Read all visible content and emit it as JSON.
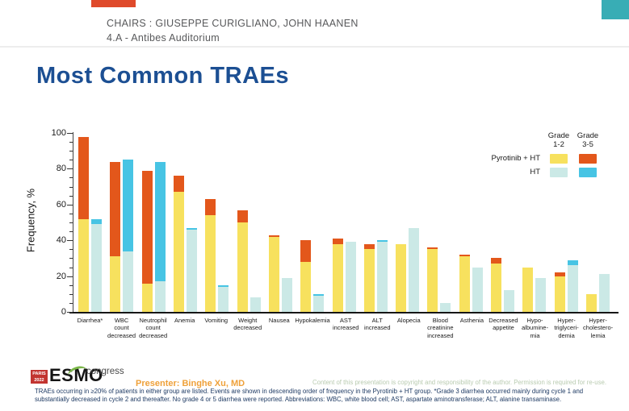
{
  "page": {
    "header": {
      "chairs": "CHAIRS : GIUSEPPE CURIGLIANO, JOHN HAANEN",
      "room": "4.A - Antibes Auditorium"
    },
    "title": "Most Common TRAEs",
    "footer": {
      "logo_paris_line1": "PARIS",
      "logo_paris_line2": "2022",
      "logo_esmo": "ESMO",
      "logo_congress": "congress",
      "presenter": "Presenter: Binghe Xu, MD",
      "copyright": "Content of this presentation is copyright and responsibility of the author. Permission is required for re-use.",
      "footnote": "TRAEs occurring in ≥20% of patients in either group are listed. Events are shown in descending order of frequency in the Pyrotinib + HT group. *Grade 3 diarrhea occurred mainly during cycle 1 and substantially decreased in cycle 2 and thereafter. No grade 4 or 5 diarrhea were reported. Abbreviations: WBC, white blood cell; AST, aspartate aminotransferase; ALT, alanine transaminase."
    },
    "decor": {
      "top_left_color": "#df4a2b",
      "top_right_color": "#38adb5"
    }
  },
  "chart_data": {
    "type": "bar",
    "stacked": true,
    "title": "",
    "xlabel": "",
    "ylabel": "Frequency, %",
    "ylim": [
      0,
      100
    ],
    "ytick_step": 20,
    "yminor_step": 5,
    "grid": false,
    "legend": {
      "position": "top-right",
      "col_headers": [
        [
          "Grade",
          "1-2"
        ],
        [
          "Grade",
          "3-5"
        ]
      ],
      "rows": [
        {
          "label": "Pyrotinib + HT",
          "colors": [
            "#F7E15E",
            "#E3571B"
          ]
        },
        {
          "label": "HT",
          "colors": [
            "#CBE9E6",
            "#47C4E4"
          ]
        }
      ]
    },
    "categories": [
      "Diarrhea*",
      "WBC count decreased",
      "Neutrophil count decreased",
      "Anemia",
      "Vomiting",
      "Weight decreased",
      "Nausea",
      "Hypokalemia",
      "AST increased",
      "ALT increased",
      "Alopecia",
      "Blood creatinine increased",
      "Asthenia",
      "Decreased appetite",
      "Hypo-albumine-mia",
      "Hyper-triglyceri-demia",
      "Hyper-cholestero-lemia"
    ],
    "category_lines": [
      [
        "Diarrhea*"
      ],
      [
        "WBC",
        "count",
        "decreased"
      ],
      [
        "Neutrophil",
        "count",
        "decreased"
      ],
      [
        "Anemia"
      ],
      [
        "Vomiting"
      ],
      [
        "Weight",
        "decreased"
      ],
      [
        "Nausea"
      ],
      [
        "Hypokalemia"
      ],
      [
        "AST",
        "increased"
      ],
      [
        "ALT",
        "increased"
      ],
      [
        "Alopecia"
      ],
      [
        "Blood",
        "creatinine",
        "increased"
      ],
      [
        "Asthenia"
      ],
      [
        "Decreased",
        "appetite"
      ],
      [
        "Hypo-",
        "albumine-",
        "mia"
      ],
      [
        "Hyper-",
        "triglyceri-",
        "demia"
      ],
      [
        "Hyper-",
        "cholestero-",
        "lemia"
      ]
    ],
    "series": [
      {
        "name": "Pyrotinib + HT — Grade 1-2",
        "group": "Pyrotinib + HT",
        "grade": "1-2",
        "color": "#F7E15E",
        "values": [
          52,
          31,
          16,
          67,
          54,
          50,
          42,
          28,
          38,
          35,
          38,
          35,
          31,
          27,
          25,
          20,
          10
        ]
      },
      {
        "name": "Pyrotinib + HT — Grade 3-5",
        "group": "Pyrotinib + HT",
        "grade": "3-5",
        "color": "#E3571B",
        "values": [
          46,
          53,
          63,
          9,
          9,
          7,
          1,
          12,
          3,
          3,
          0,
          1,
          1,
          3,
          0,
          2,
          0
        ]
      },
      {
        "name": "HT — Grade 1-2",
        "group": "HT",
        "grade": "1-2",
        "color": "#CBE9E6",
        "values": [
          49,
          34,
          17,
          46,
          14,
          8,
          19,
          9,
          39,
          39,
          47,
          5,
          25,
          12,
          19,
          26,
          21
        ]
      },
      {
        "name": "HT — Grade 3-5",
        "group": "HT",
        "grade": "3-5",
        "color": "#47C4E4",
        "values": [
          3,
          51,
          67,
          1,
          1,
          0,
          0,
          1,
          0,
          1,
          0,
          0,
          0,
          0,
          0,
          3,
          0
        ]
      }
    ]
  }
}
